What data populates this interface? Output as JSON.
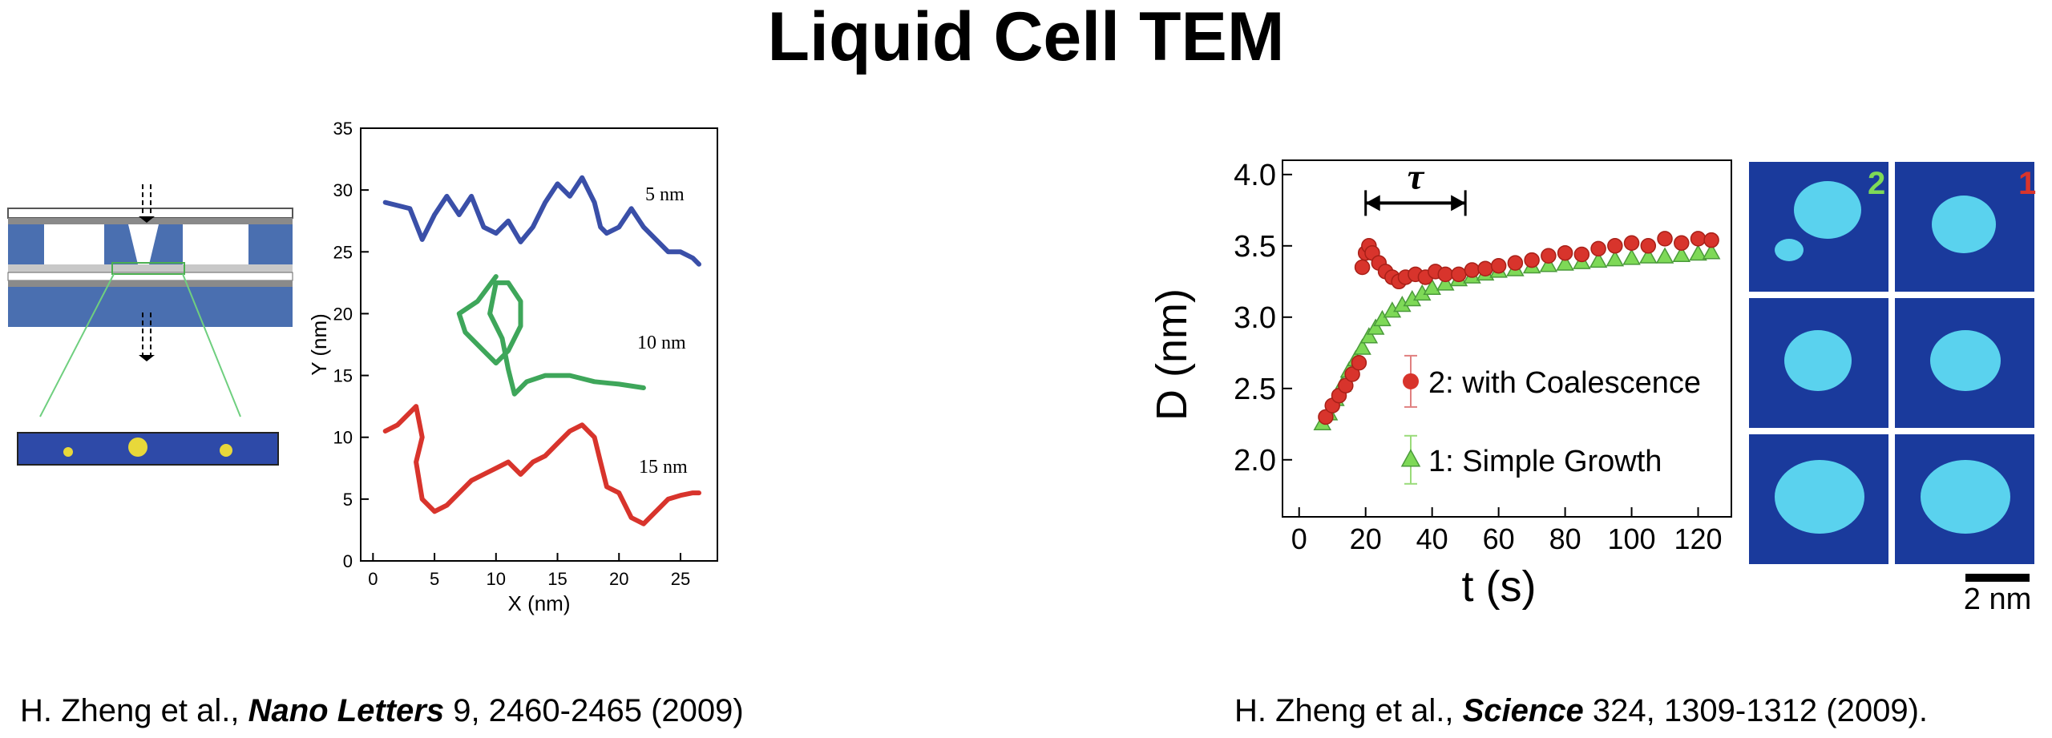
{
  "title": "Liquid Cell TEM",
  "colors": {
    "schematic_blue": "#4a6fb0",
    "trajectory_blue": "#3a4fa8",
    "trajectory_green": "#3ea65a",
    "trajectory_red": "#d8342c",
    "marker_red": "#d8342c",
    "marker_green": "#7ed957",
    "tile_background": "#1a3a9c",
    "particle_cyan": "#5ad2ee"
  },
  "schematic": {
    "icons": [
      "liquid-cell-cross-section-icon",
      "electron-beam-arrow-icon",
      "nanoparticle-icon"
    ]
  },
  "captions": {
    "left": {
      "authors": "H. Zheng et al., ",
      "journal": "Nano Letters",
      "rest": " 9, 2460-2465 (2009)"
    },
    "right": {
      "authors": "H. Zheng et al., ",
      "journal": "Science",
      "rest": " 324, 1309-1312 (2009)."
    }
  },
  "tiles": {
    "labels": [
      "2",
      "1"
    ],
    "label_colors": [
      "#7ed957",
      "#d8342c"
    ],
    "scale_bar": "2 nm"
  },
  "chart_data": [
    {
      "type": "line",
      "xlabel": "X (nm)",
      "ylabel": "Y (nm)",
      "xlim": [
        -1,
        28
      ],
      "ylim": [
        0,
        35
      ],
      "xticks": [
        0,
        5,
        10,
        15,
        20,
        25
      ],
      "yticks": [
        0,
        5,
        10,
        15,
        20,
        25,
        30,
        35
      ],
      "annotations": [
        "5 nm",
        "10 nm",
        "15 nm"
      ],
      "series": [
        {
          "label": "5 nm",
          "color": "#3a4fa8",
          "points": [
            [
              1,
              29
            ],
            [
              3,
              28.5
            ],
            [
              4,
              26
            ],
            [
              5,
              28
            ],
            [
              6,
              29.5
            ],
            [
              7,
              28
            ],
            [
              8,
              29.5
            ],
            [
              9,
              27
            ],
            [
              10,
              26.5
            ],
            [
              11,
              27.5
            ],
            [
              12,
              25.8
            ],
            [
              13,
              27
            ],
            [
              14,
              29
            ],
            [
              15,
              30.5
            ],
            [
              16,
              29.5
            ],
            [
              17,
              31
            ],
            [
              18,
              29
            ],
            [
              18.5,
              27
            ],
            [
              19,
              26.5
            ],
            [
              20,
              27
            ],
            [
              21,
              28.5
            ],
            [
              22,
              27
            ],
            [
              23,
              26
            ],
            [
              24,
              25
            ],
            [
              25,
              25
            ],
            [
              26,
              24.5
            ],
            [
              26.5,
              24
            ]
          ]
        },
        {
          "label": "10 nm",
          "color": "#3ea65a",
          "points": [
            [
              10,
              23
            ],
            [
              8.5,
              21
            ],
            [
              7,
              20
            ],
            [
              7.5,
              18.5
            ],
            [
              9,
              17
            ],
            [
              10,
              16
            ],
            [
              11,
              17
            ],
            [
              12,
              19
            ],
            [
              12,
              21
            ],
            [
              11,
              22.5
            ],
            [
              10,
              22.5
            ],
            [
              9.5,
              20
            ],
            [
              10.5,
              18
            ],
            [
              11,
              15.5
            ],
            [
              11.5,
              13.5
            ],
            [
              12.5,
              14.5
            ],
            [
              14,
              15
            ],
            [
              16,
              15
            ],
            [
              18,
              14.5
            ],
            [
              20,
              14.3
            ],
            [
              22,
              14
            ]
          ]
        },
        {
          "label": "15 nm",
          "color": "#d8342c",
          "points": [
            [
              1,
              10.5
            ],
            [
              2,
              11
            ],
            [
              3.5,
              12.5
            ],
            [
              4,
              10
            ],
            [
              3.5,
              8
            ],
            [
              4,
              5
            ],
            [
              5,
              4
            ],
            [
              6,
              4.5
            ],
            [
              7,
              5.5
            ],
            [
              8,
              6.5
            ],
            [
              9,
              7
            ],
            [
              10,
              7.5
            ],
            [
              11,
              8
            ],
            [
              12,
              7
            ],
            [
              13,
              8
            ],
            [
              14,
              8.5
            ],
            [
              15,
              9.5
            ],
            [
              16,
              10.5
            ],
            [
              17,
              11
            ],
            [
              18,
              10
            ],
            [
              18.5,
              8
            ],
            [
              19,
              6
            ],
            [
              20,
              5.5
            ],
            [
              21,
              3.5
            ],
            [
              22,
              3
            ],
            [
              23,
              4
            ],
            [
              24,
              5
            ],
            [
              25,
              5.3
            ],
            [
              26,
              5.5
            ],
            [
              26.5,
              5.5
            ]
          ]
        }
      ]
    },
    {
      "type": "scatter",
      "xlabel": "t (s)",
      "ylabel": "D (nm)",
      "xlim": [
        -5,
        130
      ],
      "ylim": [
        1.6,
        4.1
      ],
      "xticks": [
        0,
        20,
        40,
        60,
        80,
        100,
        120
      ],
      "xtick_labels": [
        "0",
        "20",
        "40",
        "60",
        "80",
        "100",
        "120"
      ],
      "yticks": [
        2.0,
        2.5,
        3.0,
        3.5,
        4.0
      ],
      "ytick_labels": [
        "2.0",
        "2.5",
        "3.0",
        "3.5",
        "4.0"
      ],
      "annotation": "τ",
      "tau_range": [
        20,
        50
      ],
      "series": [
        {
          "name": "2: with Coalescence",
          "marker": "circle",
          "color": "#d8342c",
          "points": [
            [
              8,
              2.3
            ],
            [
              10,
              2.38
            ],
            [
              12,
              2.45
            ],
            [
              14,
              2.52
            ],
            [
              16,
              2.6
            ],
            [
              18,
              2.68
            ],
            [
              19,
              3.35
            ],
            [
              20,
              3.45
            ],
            [
              21,
              3.5
            ],
            [
              22,
              3.45
            ],
            [
              24,
              3.38
            ],
            [
              26,
              3.32
            ],
            [
              28,
              3.28
            ],
            [
              30,
              3.25
            ],
            [
              32,
              3.28
            ],
            [
              35,
              3.3
            ],
            [
              38,
              3.28
            ],
            [
              41,
              3.32
            ],
            [
              44,
              3.3
            ],
            [
              48,
              3.3
            ],
            [
              52,
              3.33
            ],
            [
              56,
              3.34
            ],
            [
              60,
              3.36
            ],
            [
              65,
              3.38
            ],
            [
              70,
              3.4
            ],
            [
              75,
              3.43
            ],
            [
              80,
              3.45
            ],
            [
              85,
              3.44
            ],
            [
              90,
              3.48
            ],
            [
              95,
              3.5
            ],
            [
              100,
              3.52
            ],
            [
              105,
              3.5
            ],
            [
              110,
              3.55
            ],
            [
              115,
              3.52
            ],
            [
              120,
              3.55
            ],
            [
              124,
              3.54
            ]
          ]
        },
        {
          "name": "1: Simple Growth",
          "marker": "triangle",
          "color": "#7ed957",
          "points": [
            [
              7,
              2.25
            ],
            [
              9,
              2.32
            ],
            [
              11,
              2.42
            ],
            [
              13,
              2.52
            ],
            [
              15,
              2.62
            ],
            [
              17,
              2.7
            ],
            [
              19,
              2.78
            ],
            [
              21,
              2.86
            ],
            [
              23,
              2.92
            ],
            [
              25,
              2.98
            ],
            [
              28,
              3.04
            ],
            [
              31,
              3.08
            ],
            [
              34,
              3.12
            ],
            [
              37,
              3.16
            ],
            [
              40,
              3.2
            ],
            [
              44,
              3.23
            ],
            [
              48,
              3.26
            ],
            [
              52,
              3.28
            ],
            [
              56,
              3.3
            ],
            [
              60,
              3.32
            ],
            [
              65,
              3.33
            ],
            [
              70,
              3.35
            ],
            [
              75,
              3.36
            ],
            [
              80,
              3.37
            ],
            [
              85,
              3.38
            ],
            [
              90,
              3.39
            ],
            [
              95,
              3.4
            ],
            [
              100,
              3.41
            ],
            [
              105,
              3.42
            ],
            [
              110,
              3.42
            ],
            [
              115,
              3.43
            ],
            [
              120,
              3.44
            ],
            [
              124,
              3.45
            ]
          ]
        }
      ]
    }
  ]
}
